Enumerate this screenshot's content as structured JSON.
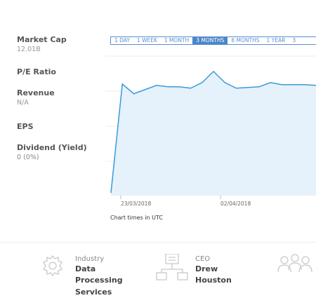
{
  "metrics": [
    {
      "label": "Market Cap",
      "value": "12.01B"
    },
    {
      "label": "P/E Ratio",
      "value": ""
    },
    {
      "label": "Revenue",
      "value": "N/A"
    },
    {
      "label": "EPS",
      "value": ""
    },
    {
      "label": "Dividend (Yield)",
      "value": "0 (0%)"
    }
  ],
  "ranges": [
    "1 DAY",
    "1 WEEK",
    "1 MONTH",
    "3 MONTHS",
    "6 MONTHS",
    "1 YEAR",
    "3"
  ],
  "active_range": "3 MONTHS",
  "chart_note": "Chart times in UTC",
  "chart_data": {
    "type": "area",
    "x_tick_labels": [
      "23/03/2018",
      "02/04/2018"
    ],
    "values": [
      0.02,
      0.8,
      0.73,
      0.76,
      0.79,
      0.78,
      0.78,
      0.77,
      0.81,
      0.89,
      0.81,
      0.77,
      0.775,
      0.78,
      0.81,
      0.795,
      0.795,
      0.795,
      0.79
    ],
    "colors": {
      "line": "#3a9ad9",
      "fill": "#e5f1fb",
      "grid": "#ececec"
    }
  },
  "company_info": [
    {
      "icon": "gear-icon",
      "label": "Industry",
      "value_lines": [
        "Data Processing",
        "Services"
      ]
    },
    {
      "icon": "org-chart-icon",
      "label": "CEO",
      "value_lines": [
        "Drew Houston"
      ]
    },
    {
      "icon": "people-icon",
      "label": "",
      "value_lines": []
    }
  ]
}
